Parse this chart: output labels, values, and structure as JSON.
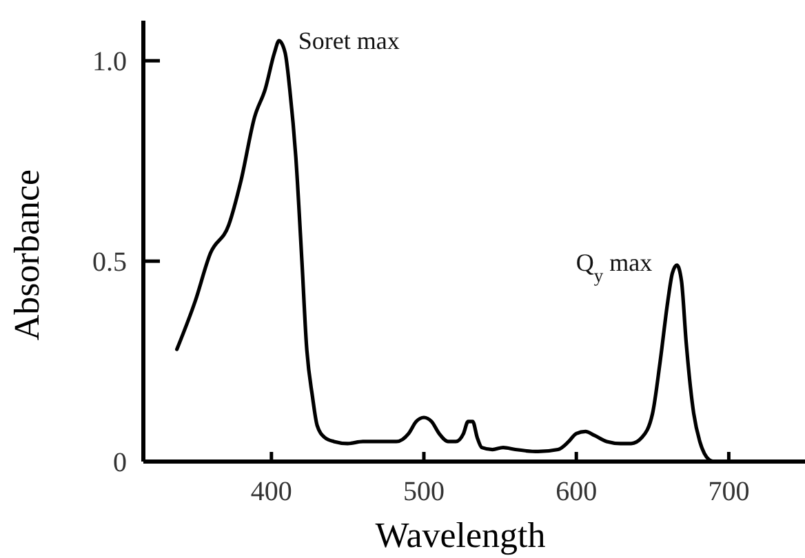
{
  "chart_data": {
    "type": "line",
    "xlabel": "Wavelength",
    "ylabel": "Absorbance",
    "xlim": [
      316,
      750
    ],
    "ylim": [
      0,
      1.1
    ],
    "xticks": [
      400,
      500,
      600,
      700
    ],
    "yticks": [
      0,
      0.5,
      {
        "value": 1,
        "label": "1.0"
      }
    ],
    "grid": false,
    "marker": "none",
    "line_style": "solid",
    "series": [
      {
        "color": "#000000",
        "x": [
          338,
          350,
          360,
          372,
          380,
          389,
          396,
          402,
          405,
          409,
          412,
          416,
          420,
          423,
          427,
          430,
          435,
          441,
          450,
          460,
          470,
          482,
          490,
          495,
          500,
          505,
          510,
          516,
          521,
          526,
          529,
          532,
          535,
          538,
          545,
          552,
          560,
          575,
          588,
          595,
          600,
          606,
          612,
          620,
          629,
          636,
          643,
          650,
          655,
          660,
          663,
          666,
          669,
          672,
          677,
          681,
          684,
          687,
          690
        ],
        "values": [
          0.28,
          0.4,
          0.52,
          0.59,
          0.7,
          0.86,
          0.93,
          1.02,
          1.05,
          1.02,
          0.93,
          0.76,
          0.5,
          0.29,
          0.16,
          0.09,
          0.06,
          0.05,
          0.045,
          0.05,
          0.05,
          0.05,
          0.07,
          0.1,
          0.11,
          0.1,
          0.07,
          0.05,
          0.05,
          0.07,
          0.1,
          0.1,
          0.06,
          0.035,
          0.03,
          0.035,
          0.03,
          0.025,
          0.03,
          0.05,
          0.07,
          0.075,
          0.065,
          0.05,
          0.045,
          0.045,
          0.06,
          0.12,
          0.25,
          0.4,
          0.47,
          0.49,
          0.45,
          0.3,
          0.12,
          0.05,
          0.02,
          0.005,
          0
        ]
      }
    ],
    "annotations": [
      {
        "text": "Soret max",
        "x": 405,
        "y": 1.05
      },
      {
        "text": "Q$_{y}$ max",
        "x": 666,
        "y": 0.49
      }
    ]
  }
}
